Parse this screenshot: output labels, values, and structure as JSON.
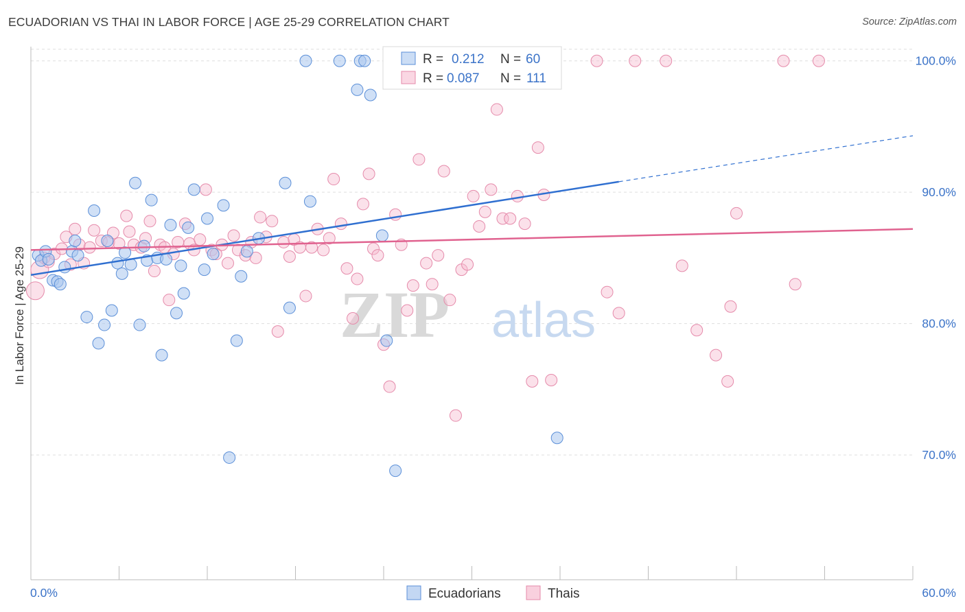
{
  "header": {
    "title": "ECUADORIAN VS THAI IN LABOR FORCE | AGE 25-29 CORRELATION CHART",
    "source": "Source: ZipAtlas.com"
  },
  "colors": {
    "blue_fill": "#a9c6ee",
    "blue_stroke": "#5b8fd8",
    "blue_line": "#2f6fd0",
    "pink_fill": "#f6bcd0",
    "pink_stroke": "#e58aaa",
    "pink_line": "#e0628f",
    "axis_label": "#3b73c8",
    "grid": "#dddddd"
  },
  "chart_data": {
    "type": "scatter",
    "title": "ECUADORIAN VS THAI IN LABOR FORCE | AGE 25-29 CORRELATION CHART",
    "xlabel": "",
    "ylabel": "In Labor Force | Age 25-29",
    "xlim": [
      0,
      60
    ],
    "ylim": [
      60.5,
      101.5
    ],
    "x_tick_labels": [
      "0.0%",
      "60.0%"
    ],
    "y_ticks": [
      70,
      80,
      90,
      100
    ],
    "y_tick_labels": [
      "70.0%",
      "80.0%",
      "90.0%",
      "100.0%"
    ],
    "grid": true,
    "legend_position": "top-center",
    "watermark": {
      "zip": "ZIP",
      "atlas": "atlas"
    },
    "stats_legend": [
      {
        "r_label": "R =",
        "r_value": "0.212",
        "n_label": "N =",
        "n_value": "60"
      },
      {
        "r_label": "R =",
        "r_value": "0.087",
        "n_label": "N =",
        "n_value": "111"
      }
    ],
    "series": [
      {
        "name": "Ecuadorians",
        "color": "#5b8fd8",
        "trend": {
          "x0": 0,
          "y0": 83.7,
          "x1": 40,
          "y1": 90.8,
          "dash_to_x": 60,
          "dash_to_y": 94.3
        },
        "points": [
          [
            0.5,
            85.2
          ],
          [
            0.7,
            84.8
          ],
          [
            1.0,
            85.5
          ],
          [
            1.2,
            84.9
          ],
          [
            1.5,
            83.3
          ],
          [
            1.8,
            83.2
          ],
          [
            2.0,
            83.0
          ],
          [
            2.3,
            84.3
          ],
          [
            2.8,
            85.5
          ],
          [
            3.0,
            86.3
          ],
          [
            3.2,
            85.2
          ],
          [
            3.8,
            80.5
          ],
          [
            4.3,
            88.6
          ],
          [
            4.6,
            78.5
          ],
          [
            5.0,
            79.9
          ],
          [
            5.2,
            86.3
          ],
          [
            5.5,
            81.0
          ],
          [
            5.9,
            84.6
          ],
          [
            6.2,
            83.8
          ],
          [
            6.4,
            85.4
          ],
          [
            6.8,
            84.5
          ],
          [
            7.1,
            90.7
          ],
          [
            7.4,
            79.9
          ],
          [
            7.7,
            85.9
          ],
          [
            7.9,
            84.8
          ],
          [
            8.2,
            89.4
          ],
          [
            8.6,
            85.0
          ],
          [
            8.9,
            77.6
          ],
          [
            9.2,
            84.9
          ],
          [
            9.5,
            87.5
          ],
          [
            9.9,
            80.8
          ],
          [
            10.2,
            84.4
          ],
          [
            10.4,
            82.3
          ],
          [
            10.7,
            87.3
          ],
          [
            11.1,
            90.2
          ],
          [
            11.8,
            84.1
          ],
          [
            12.0,
            88.0
          ],
          [
            12.4,
            85.3
          ],
          [
            13.1,
            89.0
          ],
          [
            13.5,
            69.8
          ],
          [
            14.0,
            78.7
          ],
          [
            14.3,
            83.6
          ],
          [
            14.7,
            85.5
          ],
          [
            15.5,
            86.5
          ],
          [
            17.3,
            90.7
          ],
          [
            17.6,
            81.2
          ],
          [
            18.7,
            100.0
          ],
          [
            19.0,
            89.3
          ],
          [
            21.0,
            100.0
          ],
          [
            22.2,
            97.8
          ],
          [
            22.4,
            100.0
          ],
          [
            22.7,
            100.0
          ],
          [
            23.1,
            97.4
          ],
          [
            23.9,
            86.7
          ],
          [
            24.2,
            78.7
          ],
          [
            24.8,
            68.8
          ],
          [
            35.8,
            71.3
          ]
        ]
      },
      {
        "name": "Thais",
        "color": "#e58aaa",
        "trend": {
          "x0": 0,
          "y0": 85.6,
          "x1": 60,
          "y1": 87.2
        },
        "points": [
          [
            0.3,
            82.5
          ],
          [
            0.6,
            84.1
          ],
          [
            0.9,
            85.0
          ],
          [
            1.2,
            84.7
          ],
          [
            1.6,
            85.3
          ],
          [
            2.1,
            85.7
          ],
          [
            2.4,
            86.6
          ],
          [
            2.7,
            84.5
          ],
          [
            3.0,
            87.2
          ],
          [
            3.3,
            86.0
          ],
          [
            3.6,
            84.6
          ],
          [
            4.0,
            85.8
          ],
          [
            4.3,
            87.1
          ],
          [
            4.8,
            86.3
          ],
          [
            5.3,
            86.2
          ],
          [
            5.6,
            86.9
          ],
          [
            6.0,
            86.1
          ],
          [
            6.5,
            88.2
          ],
          [
            6.7,
            87.0
          ],
          [
            7.0,
            86.0
          ],
          [
            7.5,
            85.8
          ],
          [
            7.8,
            86.5
          ],
          [
            8.1,
            87.8
          ],
          [
            8.4,
            84.0
          ],
          [
            8.8,
            86.0
          ],
          [
            9.1,
            85.8
          ],
          [
            9.4,
            81.8
          ],
          [
            9.7,
            85.3
          ],
          [
            10.0,
            86.2
          ],
          [
            10.5,
            87.6
          ],
          [
            10.8,
            86.1
          ],
          [
            11.1,
            85.6
          ],
          [
            11.5,
            86.4
          ],
          [
            11.9,
            90.2
          ],
          [
            12.3,
            85.6
          ],
          [
            12.6,
            85.3
          ],
          [
            13.0,
            86.0
          ],
          [
            13.4,
            84.6
          ],
          [
            13.8,
            86.7
          ],
          [
            14.1,
            85.6
          ],
          [
            14.6,
            85.2
          ],
          [
            15.0,
            86.2
          ],
          [
            15.3,
            85.0
          ],
          [
            15.6,
            88.1
          ],
          [
            16.0,
            86.6
          ],
          [
            16.4,
            87.8
          ],
          [
            16.8,
            79.4
          ],
          [
            17.2,
            86.2
          ],
          [
            17.6,
            85.1
          ],
          [
            17.9,
            86.4
          ],
          [
            18.3,
            85.8
          ],
          [
            18.7,
            82.1
          ],
          [
            19.1,
            85.8
          ],
          [
            19.5,
            87.2
          ],
          [
            19.9,
            85.6
          ],
          [
            20.3,
            86.5
          ],
          [
            20.6,
            91.0
          ],
          [
            21.1,
            87.6
          ],
          [
            21.5,
            84.2
          ],
          [
            21.9,
            80.4
          ],
          [
            22.2,
            83.4
          ],
          [
            22.6,
            89.1
          ],
          [
            23.0,
            91.4
          ],
          [
            23.3,
            85.7
          ],
          [
            23.6,
            85.2
          ],
          [
            24.0,
            78.4
          ],
          [
            24.4,
            75.2
          ],
          [
            24.8,
            88.3
          ],
          [
            25.2,
            86.0
          ],
          [
            25.6,
            81.0
          ],
          [
            26.0,
            82.9
          ],
          [
            26.4,
            92.5
          ],
          [
            26.9,
            84.6
          ],
          [
            27.3,
            83.0
          ],
          [
            27.7,
            85.2
          ],
          [
            28.1,
            91.6
          ],
          [
            28.5,
            81.8
          ],
          [
            28.9,
            73.0
          ],
          [
            29.3,
            84.1
          ],
          [
            29.7,
            84.5
          ],
          [
            30.1,
            89.7
          ],
          [
            30.5,
            87.4
          ],
          [
            30.9,
            88.5
          ],
          [
            31.3,
            90.2
          ],
          [
            31.7,
            96.3
          ],
          [
            32.1,
            88.0
          ],
          [
            32.6,
            88.0
          ],
          [
            33.1,
            89.7
          ],
          [
            33.6,
            87.6
          ],
          [
            34.1,
            75.6
          ],
          [
            34.5,
            93.4
          ],
          [
            34.9,
            89.8
          ],
          [
            35.4,
            75.7
          ],
          [
            38.5,
            100.0
          ],
          [
            39.2,
            82.4
          ],
          [
            40.0,
            80.8
          ],
          [
            41.1,
            100.0
          ],
          [
            43.2,
            100.0
          ],
          [
            44.3,
            84.4
          ],
          [
            45.3,
            79.5
          ],
          [
            46.6,
            77.6
          ],
          [
            47.4,
            75.6
          ],
          [
            47.6,
            81.3
          ],
          [
            48.0,
            88.4
          ],
          [
            51.2,
            100.0
          ],
          [
            52.0,
            83.0
          ],
          [
            53.6,
            100.0
          ]
        ]
      }
    ]
  }
}
